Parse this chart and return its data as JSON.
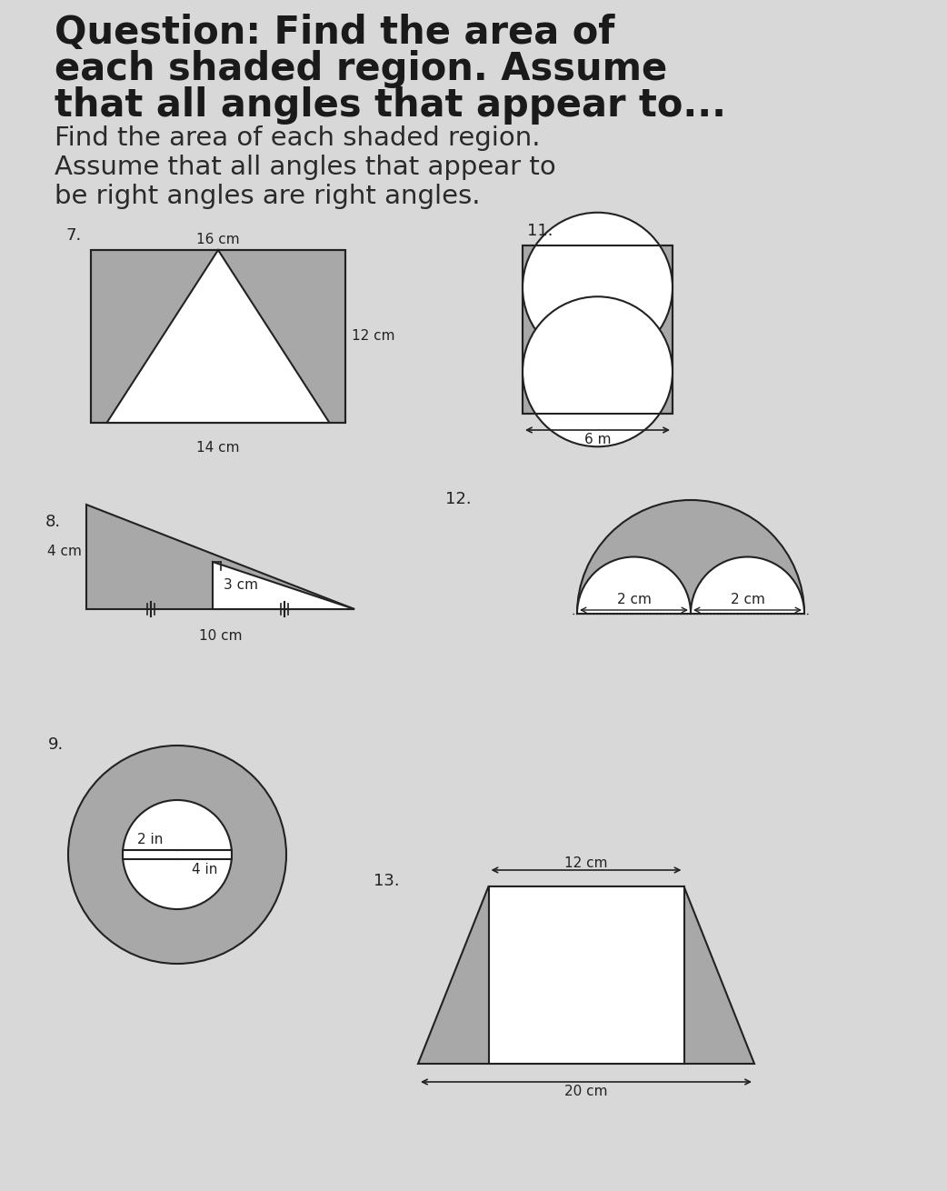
{
  "bg_color": "#d8d8d8",
  "shade_color": "#a8a8a8",
  "white_color": "#ffffff",
  "outline_color": "#222222",
  "title_line1": "Question: Find the area of",
  "title_line2": "each shaded region. Assume",
  "title_line3": "that all angles that appear to...",
  "subtitle_line1": "Find the area of each shaded region.",
  "subtitle_line2": "Assume that all angles that appear to",
  "subtitle_line3": "be right angles are right angles.",
  "fig7_label": "7.",
  "fig7_w": "16 cm",
  "fig7_h": "12 cm",
  "fig7_base": "14 cm",
  "fig8_label": "8.",
  "fig8_left": "4 cm",
  "fig8_mid": "3 cm",
  "fig8_base": "10 cm",
  "fig9_label": "9.",
  "fig9_inner": "2 in",
  "fig9_outer": "4 in",
  "fig11_label": "11.",
  "fig11_w": "6 m",
  "fig12_label": "12.",
  "fig12_left": "2 cm",
  "fig12_right": "2 cm",
  "fig13_label": "13.",
  "fig13_top": "12 cm",
  "fig13_base": "20 cm"
}
